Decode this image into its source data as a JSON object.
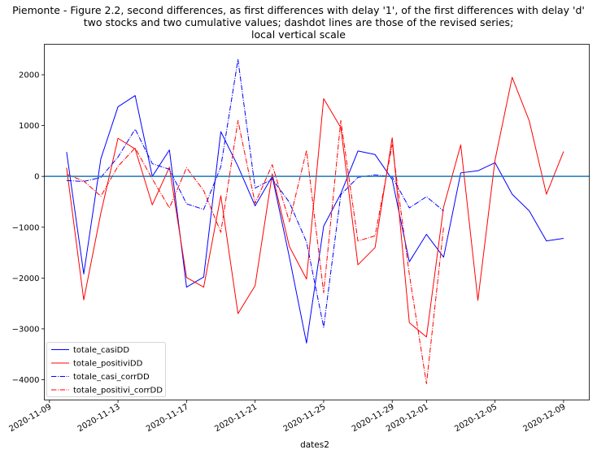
{
  "chart_data": {
    "type": "line",
    "title_lines": [
      "Piemonte - Figure 2.2, second differences, as first differences with delay '1', of the first differences with delay 'd'",
      "two stocks and two cumulative values; dashdot lines are those of the revised series;",
      "local vertical scale"
    ],
    "xlabel": "dates2",
    "ylabel": "",
    "x_ticks": [
      "2020-11-09",
      "2020-11-13",
      "2020-11-17",
      "2020-11-21",
      "2020-11-25",
      "2020-11-29",
      "2020-12-01",
      "2020-12-05",
      "2020-12-09"
    ],
    "y_ticks": [
      2000,
      1000,
      0,
      -1000,
      -2000,
      -3000,
      -4000
    ],
    "xlim": [
      "2020-11-08.7",
      "2020-12-10.5"
    ],
    "ylim": [
      -4400,
      2600
    ],
    "hline": {
      "y": 0,
      "color": "#1f77b4"
    },
    "legend_position": "lower left",
    "grid": false,
    "series": [
      {
        "name": "totale_casiDD",
        "color": "#0000ff",
        "style": "solid",
        "points": [
          [
            "2020-11-10",
            480
          ],
          [
            "2020-11-11",
            -1920
          ],
          [
            "2020-11-12",
            350
          ],
          [
            "2020-11-13",
            1370
          ],
          [
            "2020-11-14",
            1590
          ],
          [
            "2020-11-15",
            0
          ],
          [
            "2020-11-16",
            520
          ],
          [
            "2020-11-17",
            -2180
          ],
          [
            "2020-11-18",
            -1980
          ],
          [
            "2020-11-19",
            880
          ],
          [
            "2020-11-20",
            200
          ],
          [
            "2020-11-21",
            -580
          ],
          [
            "2020-11-22",
            0
          ],
          [
            "2020-11-23",
            -1590
          ],
          [
            "2020-11-24",
            -3280
          ],
          [
            "2020-11-25",
            -980
          ],
          [
            "2020-11-26",
            -340
          ],
          [
            "2020-11-27",
            500
          ],
          [
            "2020-11-28",
            430
          ],
          [
            "2020-11-29",
            -60
          ],
          [
            "2020-11-30",
            -1680
          ],
          [
            "2020-12-01",
            -1140
          ],
          [
            "2020-12-02",
            -1590
          ],
          [
            "2020-12-03",
            70
          ],
          [
            "2020-12-04",
            110
          ],
          [
            "2020-12-05",
            270
          ],
          [
            "2020-12-06",
            -350
          ],
          [
            "2020-12-07",
            -680
          ],
          [
            "2020-12-08",
            -1270
          ],
          [
            "2020-12-09",
            -1220
          ]
        ]
      },
      {
        "name": "totale_positiviDD",
        "color": "#ff0000",
        "style": "solid",
        "points": [
          [
            "2020-11-10",
            170
          ],
          [
            "2020-11-11",
            -2430
          ],
          [
            "2020-11-12",
            -720
          ],
          [
            "2020-11-13",
            750
          ],
          [
            "2020-11-14",
            540
          ],
          [
            "2020-11-15",
            -560
          ],
          [
            "2020-11-16",
            180
          ],
          [
            "2020-11-17",
            -1990
          ],
          [
            "2020-11-18",
            -2180
          ],
          [
            "2020-11-19",
            -380
          ],
          [
            "2020-11-20",
            -2700
          ],
          [
            "2020-11-21",
            -2150
          ],
          [
            "2020-11-22",
            50
          ],
          [
            "2020-11-23",
            -1380
          ],
          [
            "2020-11-24",
            -2020
          ],
          [
            "2020-11-25",
            1530
          ],
          [
            "2020-11-26",
            960
          ],
          [
            "2020-11-27",
            -1740
          ],
          [
            "2020-11-28",
            -1400
          ],
          [
            "2020-11-29",
            760
          ],
          [
            "2020-11-30",
            -2880
          ],
          [
            "2020-12-01",
            -3160
          ],
          [
            "2020-12-02",
            -600
          ],
          [
            "2020-12-03",
            620
          ],
          [
            "2020-12-04",
            -2440
          ],
          [
            "2020-12-05",
            320
          ],
          [
            "2020-12-06",
            1950
          ],
          [
            "2020-12-07",
            1090
          ],
          [
            "2020-12-08",
            -350
          ],
          [
            "2020-12-09",
            490
          ]
        ]
      },
      {
        "name": "totale_casi_corrDD",
        "color": "#0000ff",
        "style": "dashdot",
        "points": [
          [
            "2020-11-10",
            -80
          ],
          [
            "2020-11-11",
            -100
          ],
          [
            "2020-11-12",
            -20
          ],
          [
            "2020-11-13",
            380
          ],
          [
            "2020-11-14",
            930
          ],
          [
            "2020-11-15",
            250
          ],
          [
            "2020-11-16",
            140
          ],
          [
            "2020-11-17",
            -540
          ],
          [
            "2020-11-18",
            -650
          ],
          [
            "2020-11-19",
            190
          ],
          [
            "2020-11-20",
            2300
          ],
          [
            "2020-11-21",
            -230
          ],
          [
            "2020-11-22",
            -50
          ],
          [
            "2020-11-23",
            -510
          ],
          [
            "2020-11-24",
            -1290
          ],
          [
            "2020-11-25",
            -2970
          ],
          [
            "2020-11-26",
            -360
          ],
          [
            "2020-11-27",
            -20
          ],
          [
            "2020-11-28",
            30
          ],
          [
            "2020-11-29",
            -10
          ],
          [
            "2020-11-30",
            -620
          ],
          [
            "2020-12-01",
            -400
          ],
          [
            "2020-12-02",
            -680
          ]
        ]
      },
      {
        "name": "totale_positivi_corrDD",
        "color": "#ff0000",
        "style": "dashdot",
        "points": [
          [
            "2020-11-10",
            40
          ],
          [
            "2020-11-11",
            -90
          ],
          [
            "2020-11-12",
            -390
          ],
          [
            "2020-11-13",
            200
          ],
          [
            "2020-11-14",
            560
          ],
          [
            "2020-11-15",
            -50
          ],
          [
            "2020-11-16",
            -620
          ],
          [
            "2020-11-17",
            170
          ],
          [
            "2020-11-18",
            -280
          ],
          [
            "2020-11-19",
            -1100
          ],
          [
            "2020-11-20",
            1100
          ],
          [
            "2020-11-21",
            -530
          ],
          [
            "2020-11-22",
            230
          ],
          [
            "2020-11-23",
            -890
          ],
          [
            "2020-11-24",
            510
          ],
          [
            "2020-11-25",
            -2290
          ],
          [
            "2020-11-26",
            1100
          ],
          [
            "2020-11-27",
            -1270
          ],
          [
            "2020-11-28",
            -1170
          ],
          [
            "2020-11-29",
            620
          ],
          [
            "2020-11-30",
            -1930
          ],
          [
            "2020-12-01",
            -4080
          ],
          [
            "2020-12-02",
            -1000
          ]
        ]
      }
    ]
  }
}
